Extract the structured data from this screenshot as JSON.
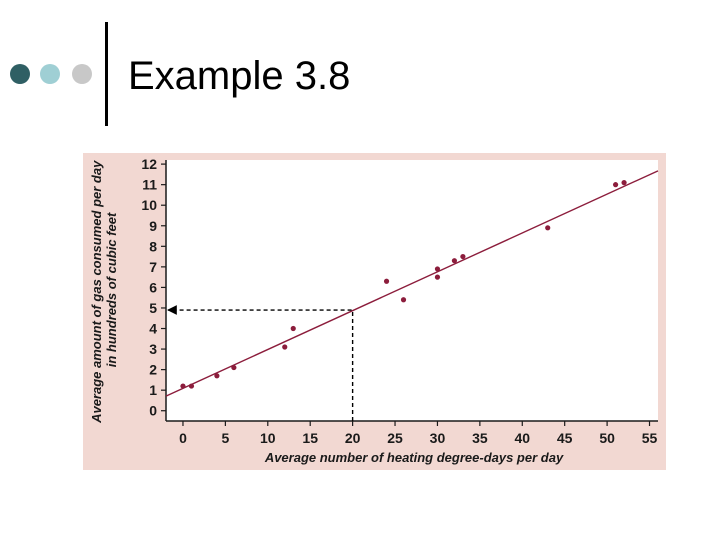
{
  "slide": {
    "title": "Example 3.8",
    "bullet_colors": [
      "#2f5f64",
      "#9fcfd4",
      "#c8c8c8"
    ]
  },
  "colors": {
    "panel_bg": "#f2d8d2",
    "plot_bg": "#ffffff",
    "line": "#8c1d3c",
    "points": "#8c1d3c",
    "text": "#1a1a1a"
  },
  "chart_data": {
    "type": "scatter",
    "xlabel": "Average number of heating degree-days per day",
    "ylabel_lines": [
      "Average amount of gas consumed per day",
      "in hundreds of cubic feet"
    ],
    "xlim": [
      -2,
      56
    ],
    "ylim": [
      -0.5,
      12.2
    ],
    "xticks": [
      0,
      5,
      10,
      15,
      20,
      25,
      30,
      35,
      40,
      45,
      50,
      55
    ],
    "yticks": [
      0,
      1,
      2,
      3,
      4,
      5,
      6,
      7,
      8,
      9,
      10,
      11,
      12
    ],
    "grid": false,
    "points": [
      {
        "x": 0,
        "y": 1.2
      },
      {
        "x": 1,
        "y": 1.2
      },
      {
        "x": 4,
        "y": 1.7
      },
      {
        "x": 6,
        "y": 2.1
      },
      {
        "x": 12,
        "y": 3.1
      },
      {
        "x": 13,
        "y": 4.0
      },
      {
        "x": 24,
        "y": 6.3
      },
      {
        "x": 26,
        "y": 5.4
      },
      {
        "x": 30,
        "y": 6.9
      },
      {
        "x": 30,
        "y": 6.5
      },
      {
        "x": 32,
        "y": 7.3
      },
      {
        "x": 33,
        "y": 7.5
      },
      {
        "x": 43,
        "y": 8.9
      },
      {
        "x": 51,
        "y": 11.0
      },
      {
        "x": 52,
        "y": 11.1
      }
    ],
    "regression_line": {
      "intercept": 1.0892,
      "slope": 0.189
    },
    "prediction": {
      "x": 20,
      "y": 4.9
    }
  }
}
